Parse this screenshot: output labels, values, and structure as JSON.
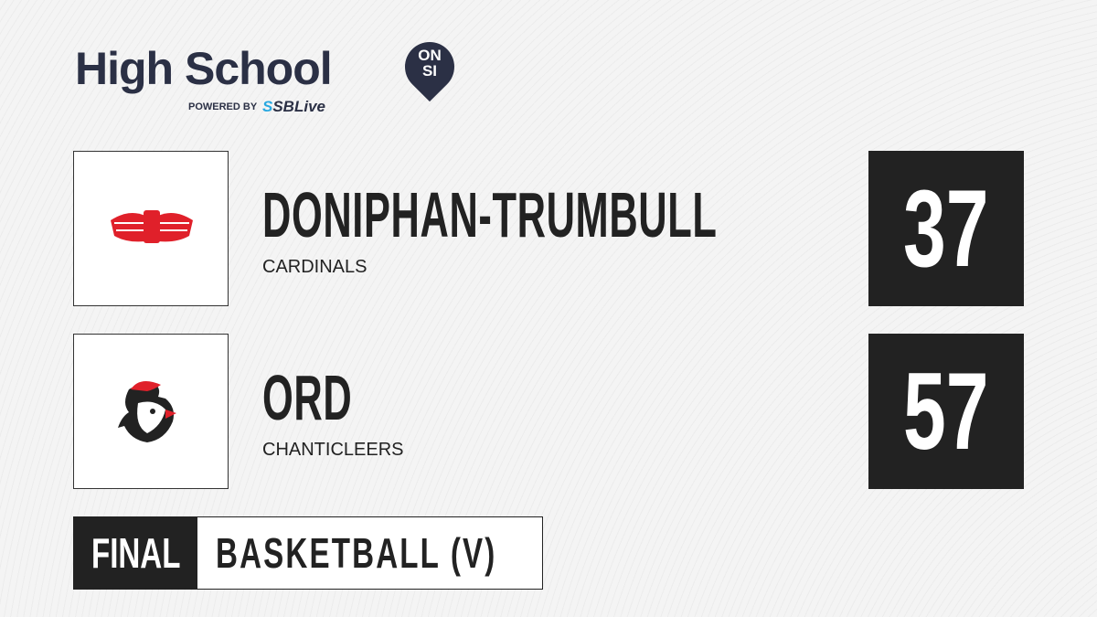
{
  "brand": {
    "title": "High School",
    "badge_top": "ON",
    "badge_bottom": "SI",
    "powered_by": "POWERED BY",
    "partner_prefix": "S",
    "partner": "SBLive"
  },
  "teams": [
    {
      "name": "DONIPHAN-TRUMBULL",
      "mascot": "CARDINALS",
      "score": "37",
      "logo": "cardinals-wings-logo"
    },
    {
      "name": "ORD",
      "mascot": "CHANTICLEERS",
      "score": "57",
      "logo": "rooster-logo"
    }
  ],
  "status": "FINAL",
  "sport": "BASKETBALL (V)",
  "colors": {
    "dark": "#222222",
    "brand": "#2b3045",
    "accent": "#29a8e0",
    "logo_red": "#e0202a"
  }
}
